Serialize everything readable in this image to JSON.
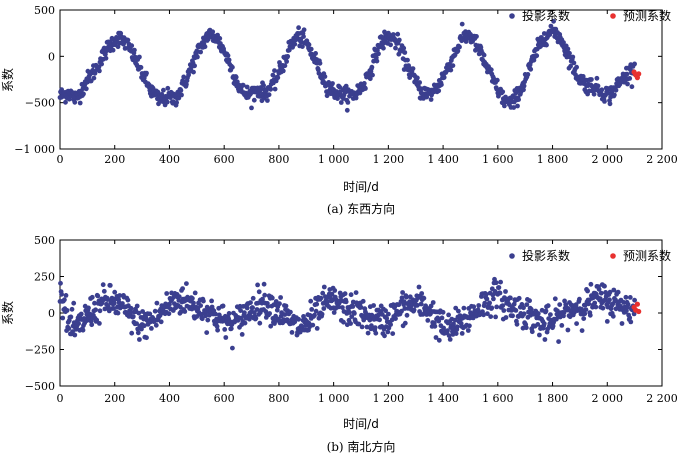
{
  "chart_data": [
    {
      "type": "scatter",
      "id": "ew",
      "caption": "(a) 东西方向",
      "xlabel": "时间/d",
      "ylabel": "系数",
      "xlim": [
        0,
        2200
      ],
      "ylim": [
        -1000,
        500
      ],
      "xticks": [
        0,
        200,
        400,
        600,
        800,
        1000,
        1200,
        1400,
        1600,
        1800,
        2000,
        2200
      ],
      "xtick_labels": [
        "0",
        "200",
        "400",
        "600",
        "800",
        "1 000",
        "1 200",
        "1 400",
        "1 600",
        "1 800",
        "2 000",
        "2 200"
      ],
      "yticks": [
        500,
        0,
        -500,
        -1000
      ],
      "ytick_labels": [
        "500",
        "0",
        "−500",
        "−1 000"
      ],
      "legend_position": "top-right",
      "series": [
        {
          "name": "投影系数",
          "color": "#3b3f8f",
          "x_start": 0,
          "x_end": 2100,
          "x_step": 30,
          "values": [
            -430,
            -390,
            -460,
            -300,
            -180,
            -40,
            120,
            200,
            150,
            0,
            -180,
            -360,
            -470,
            -440,
            -460,
            -320,
            -120,
            80,
            230,
            210,
            60,
            -150,
            -360,
            -420,
            -360,
            -400,
            -300,
            -120,
            100,
            220,
            140,
            -20,
            -220,
            -360,
            -400,
            -430,
            -400,
            -310,
            -100,
            140,
            210,
            160,
            -40,
            -220,
            -380,
            -410,
            -330,
            -170,
            20,
            200,
            230,
            80,
            -120,
            -300,
            -460,
            -520,
            -380,
            -180,
            40,
            220,
            280,
            200,
            0,
            -200,
            -300,
            -320,
            -380,
            -420,
            -300,
            -200,
            -120
          ]
        },
        {
          "name": "预测系数",
          "color": "#e8312f",
          "x": [
            2098,
            2104,
            2110,
            2115
          ],
          "values": [
            -170,
            -200,
            -230,
            -190
          ]
        }
      ]
    },
    {
      "type": "scatter",
      "id": "ns",
      "caption": "(b) 南北方向",
      "xlabel": "时间/d",
      "ylabel": "系数",
      "xlim": [
        0,
        2200
      ],
      "ylim": [
        -500,
        500
      ],
      "xticks": [
        0,
        200,
        400,
        600,
        800,
        1000,
        1200,
        1400,
        1600,
        1800,
        2000,
        2200
      ],
      "xtick_labels": [
        "0",
        "200",
        "400",
        "600",
        "800",
        "1 000",
        "1 200",
        "1 400",
        "1 600",
        "1 800",
        "2 000",
        "2 200"
      ],
      "yticks": [
        500,
        250,
        0,
        -250,
        -500
      ],
      "ytick_labels": [
        "500",
        "250",
        "0",
        "−250",
        "−500"
      ],
      "legend_position": "top-right",
      "series": [
        {
          "name": "投影系数",
          "color": "#3b3f8f",
          "x_start": 0,
          "x_end": 2100,
          "x_step": 30,
          "values": [
            180,
            -80,
            -120,
            -40,
            20,
            60,
            80,
            60,
            20,
            -40,
            -80,
            -60,
            -20,
            40,
            80,
            100,
            60,
            40,
            20,
            -20,
            -60,
            -80,
            -40,
            20,
            60,
            80,
            40,
            0,
            -60,
            -100,
            -80,
            -20,
            40,
            80,
            60,
            20,
            20,
            -20,
            -40,
            -60,
            -40,
            0,
            40,
            60,
            60,
            20,
            -60,
            -120,
            -100,
            -60,
            -20,
            40,
            80,
            120,
            80,
            40,
            20,
            0,
            -40,
            -80,
            -60,
            -20,
            20,
            40,
            60,
            80,
            100,
            80,
            60,
            40,
            20
          ]
        },
        {
          "name": "预测系数",
          "color": "#e8312f",
          "x": [
            2098,
            2104,
            2110,
            2115
          ],
          "values": [
            40,
            20,
            60,
            10
          ]
        }
      ]
    }
  ]
}
